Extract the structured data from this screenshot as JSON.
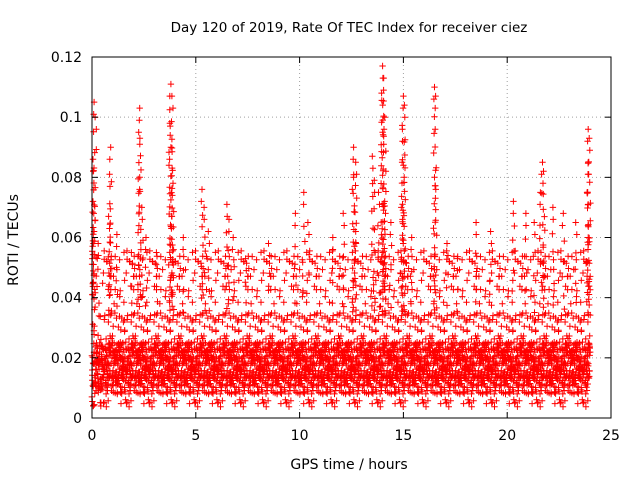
{
  "chart_data": {
    "type": "scatter",
    "title": "Day 120 of 2019, Rate Of TEC Index for receiver ciez",
    "xlabel": "GPS time / hours",
    "ylabel": "ROTI / TECUs",
    "xlim": [
      0,
      25
    ],
    "ylim": [
      0,
      0.12
    ],
    "x_ticks": [
      0,
      5,
      10,
      15,
      20,
      25
    ],
    "x_tick_labels": [
      "0",
      "5",
      "10",
      "15",
      "20",
      "25"
    ],
    "y_ticks": [
      0,
      0.02,
      0.04,
      0.06,
      0.08,
      0.1,
      0.12
    ],
    "y_tick_labels": [
      "0",
      "0.02",
      "0.04",
      "0.06",
      "0.08",
      "0.1",
      "0.12"
    ],
    "grid": true,
    "marker": "+",
    "color": "#ff0000",
    "series": [
      {
        "name": "ROTI",
        "time_range_hours": [
          0,
          24
        ],
        "sample_interval_hours": 0.02,
        "typical_range": [
          0.003,
          0.035
        ],
        "dense_band": [
          0.008,
          0.025
        ],
        "peaks": [
          {
            "x": 0.1,
            "y": 0.105
          },
          {
            "x": 0.15,
            "y": 0.1
          },
          {
            "x": 0.05,
            "y": 0.086
          },
          {
            "x": 0.05,
            "y": 0.072
          },
          {
            "x": 0.1,
            "y": 0.062
          },
          {
            "x": 0.3,
            "y": 0.058
          },
          {
            "x": 0.9,
            "y": 0.09
          },
          {
            "x": 0.85,
            "y": 0.081
          },
          {
            "x": 0.8,
            "y": 0.067
          },
          {
            "x": 1.2,
            "y": 0.061
          },
          {
            "x": 1.9,
            "y": 0.055
          },
          {
            "x": 2.3,
            "y": 0.103
          },
          {
            "x": 2.25,
            "y": 0.095
          },
          {
            "x": 2.3,
            "y": 0.08
          },
          {
            "x": 2.4,
            "y": 0.07
          },
          {
            "x": 2.6,
            "y": 0.06
          },
          {
            "x": 3.1,
            "y": 0.055
          },
          {
            "x": 3.8,
            "y": 0.111
          },
          {
            "x": 3.85,
            "y": 0.107
          },
          {
            "x": 3.75,
            "y": 0.098
          },
          {
            "x": 3.8,
            "y": 0.09
          },
          {
            "x": 3.9,
            "y": 0.078
          },
          {
            "x": 3.85,
            "y": 0.067
          },
          {
            "x": 4.4,
            "y": 0.06
          },
          {
            "x": 5.3,
            "y": 0.076
          },
          {
            "x": 5.4,
            "y": 0.07
          },
          {
            "x": 5.6,
            "y": 0.062
          },
          {
            "x": 6.5,
            "y": 0.071
          },
          {
            "x": 6.6,
            "y": 0.066
          },
          {
            "x": 6.8,
            "y": 0.06
          },
          {
            "x": 7.4,
            "y": 0.053
          },
          {
            "x": 8.5,
            "y": 0.058
          },
          {
            "x": 9.8,
            "y": 0.068
          },
          {
            "x": 10.2,
            "y": 0.075
          },
          {
            "x": 10.4,
            "y": 0.065
          },
          {
            "x": 11.6,
            "y": 0.06
          },
          {
            "x": 12.1,
            "y": 0.068
          },
          {
            "x": 12.6,
            "y": 0.09
          },
          {
            "x": 12.7,
            "y": 0.085
          },
          {
            "x": 12.6,
            "y": 0.08
          },
          {
            "x": 12.7,
            "y": 0.062
          },
          {
            "x": 13.5,
            "y": 0.087
          },
          {
            "x": 13.6,
            "y": 0.079
          },
          {
            "x": 13.8,
            "y": 0.075
          },
          {
            "x": 14.0,
            "y": 0.117
          },
          {
            "x": 14.05,
            "y": 0.113
          },
          {
            "x": 13.95,
            "y": 0.108
          },
          {
            "x": 14.1,
            "y": 0.1
          },
          {
            "x": 14.0,
            "y": 0.095
          },
          {
            "x": 14.1,
            "y": 0.072
          },
          {
            "x": 14.4,
            "y": 0.065
          },
          {
            "x": 15.0,
            "y": 0.107
          },
          {
            "x": 15.05,
            "y": 0.104
          },
          {
            "x": 14.95,
            "y": 0.096
          },
          {
            "x": 15.0,
            "y": 0.084
          },
          {
            "x": 14.9,
            "y": 0.07
          },
          {
            "x": 15.4,
            "y": 0.06
          },
          {
            "x": 16.5,
            "y": 0.11
          },
          {
            "x": 16.55,
            "y": 0.107
          },
          {
            "x": 16.5,
            "y": 0.08
          },
          {
            "x": 17.1,
            "y": 0.058
          },
          {
            "x": 17.6,
            "y": 0.053
          },
          {
            "x": 18.5,
            "y": 0.065
          },
          {
            "x": 19.2,
            "y": 0.062
          },
          {
            "x": 20.3,
            "y": 0.072
          },
          {
            "x": 20.9,
            "y": 0.068
          },
          {
            "x": 21.3,
            "y": 0.065
          },
          {
            "x": 21.7,
            "y": 0.085
          },
          {
            "x": 21.75,
            "y": 0.082
          },
          {
            "x": 21.6,
            "y": 0.075
          },
          {
            "x": 22.2,
            "y": 0.07
          },
          {
            "x": 22.7,
            "y": 0.068
          },
          {
            "x": 23.3,
            "y": 0.065
          },
          {
            "x": 23.9,
            "y": 0.096
          },
          {
            "x": 23.95,
            "y": 0.093
          },
          {
            "x": 23.9,
            "y": 0.085
          },
          {
            "x": 23.85,
            "y": 0.075
          },
          {
            "x": 23.9,
            "y": 0.06
          }
        ]
      }
    ]
  }
}
